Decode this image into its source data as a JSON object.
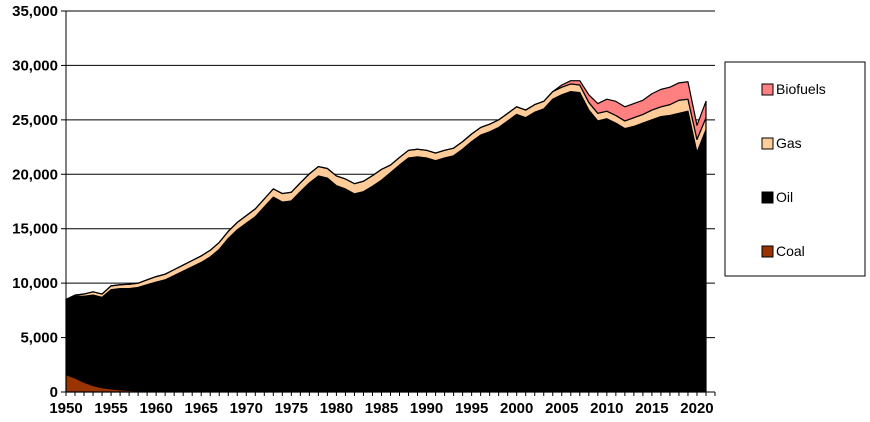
{
  "chart_data": {
    "type": "area",
    "stacked": true,
    "title": "",
    "xlabel": "",
    "ylabel": "",
    "xlim": [
      1950,
      2022
    ],
    "ylim": [
      0,
      35000
    ],
    "grid": "horizontal",
    "legend_position": "right",
    "x": [
      1950,
      1951,
      1952,
      1953,
      1954,
      1955,
      1956,
      1957,
      1958,
      1959,
      1960,
      1961,
      1962,
      1963,
      1964,
      1965,
      1966,
      1967,
      1968,
      1969,
      1970,
      1971,
      1972,
      1973,
      1974,
      1975,
      1976,
      1977,
      1978,
      1979,
      1980,
      1981,
      1982,
      1983,
      1984,
      1985,
      1986,
      1987,
      1988,
      1989,
      1990,
      1991,
      1992,
      1993,
      1994,
      1995,
      1996,
      1997,
      1998,
      1999,
      2000,
      2001,
      2002,
      2003,
      2004,
      2005,
      2006,
      2007,
      2008,
      2009,
      2010,
      2011,
      2012,
      2013,
      2014,
      2015,
      2016,
      2017,
      2018,
      2019,
      2020,
      2021
    ],
    "x_ticks": [
      "1950",
      "1955",
      "1960",
      "1965",
      "1970",
      "1975",
      "1980",
      "1985",
      "1990",
      "1995",
      "2000",
      "2005",
      "2010",
      "2015",
      "2020"
    ],
    "y_ticks": [
      "0",
      "5,000",
      "10,000",
      "15,000",
      "20,000",
      "25,000",
      "30,000",
      "35,000"
    ],
    "series": [
      {
        "name": "Coal",
        "color": "#993300",
        "values": [
          1600,
          1300,
          900,
          600,
          400,
          300,
          200,
          150,
          100,
          60,
          40,
          30,
          25,
          20,
          15,
          10,
          10,
          10,
          10,
          10,
          10,
          10,
          10,
          10,
          10,
          10,
          10,
          10,
          10,
          10,
          10,
          10,
          10,
          10,
          10,
          10,
          10,
          10,
          10,
          10,
          10,
          10,
          10,
          10,
          10,
          10,
          10,
          10,
          10,
          10,
          10,
          10,
          10,
          10,
          10,
          10,
          10,
          10,
          10,
          10,
          10,
          10,
          10,
          10,
          10,
          10,
          10,
          10,
          10,
          10,
          10,
          10
        ]
      },
      {
        "name": "Oil",
        "color": "#000000",
        "values": [
          6900,
          7500,
          7900,
          8300,
          8300,
          9100,
          9300,
          9350,
          9500,
          9800,
          10060,
          10270,
          10675,
          11080,
          11485,
          11890,
          12390,
          13090,
          14090,
          14890,
          15490,
          16090,
          16990,
          17890,
          17440,
          17540,
          18390,
          19190,
          19840,
          19640,
          18940,
          18640,
          18190,
          18390,
          18890,
          19440,
          20140,
          20840,
          21490,
          21590,
          21490,
          21240,
          21490,
          21690,
          22290,
          22990,
          23590,
          23890,
          24290,
          24890,
          25490,
          25190,
          25690,
          25990,
          26890,
          27290,
          27590,
          27490,
          25890,
          24890,
          25090,
          24690,
          24190,
          24390,
          24690,
          24990,
          25290,
          25390,
          25590,
          25790,
          21990,
          24090
        ]
      },
      {
        "name": "Gas",
        "color": "#ffcc99",
        "values": [
          0,
          100,
          200,
          300,
          300,
          350,
          350,
          400,
          400,
          450,
          500,
          520,
          540,
          560,
          580,
          600,
          620,
          640,
          660,
          680,
          700,
          720,
          740,
          760,
          780,
          800,
          820,
          840,
          860,
          880,
          900,
          920,
          940,
          960,
          980,
          1000,
          700,
          700,
          700,
          700,
          700,
          700,
          700,
          700,
          700,
          700,
          700,
          700,
          700,
          700,
          700,
          700,
          700,
          700,
          700,
          700,
          700,
          700,
          700,
          700,
          700,
          700,
          700,
          800,
          800,
          900,
          900,
          1000,
          1200,
          1100,
          1200,
          1100
        ]
      },
      {
        "name": "Biofuels",
        "color": "#ff8080",
        "values": [
          0,
          0,
          0,
          0,
          0,
          0,
          0,
          0,
          0,
          0,
          0,
          0,
          0,
          0,
          0,
          0,
          0,
          0,
          0,
          0,
          0,
          0,
          0,
          0,
          0,
          0,
          0,
          0,
          0,
          0,
          0,
          0,
          0,
          0,
          0,
          0,
          0,
          0,
          0,
          0,
          0,
          0,
          0,
          0,
          0,
          0,
          0,
          0,
          0,
          0,
          0,
          0,
          0,
          0,
          0,
          200,
          300,
          400,
          700,
          900,
          1100,
          1300,
          1300,
          1300,
          1300,
          1500,
          1600,
          1600,
          1600,
          1600,
          1300,
          1500
        ]
      }
    ]
  }
}
